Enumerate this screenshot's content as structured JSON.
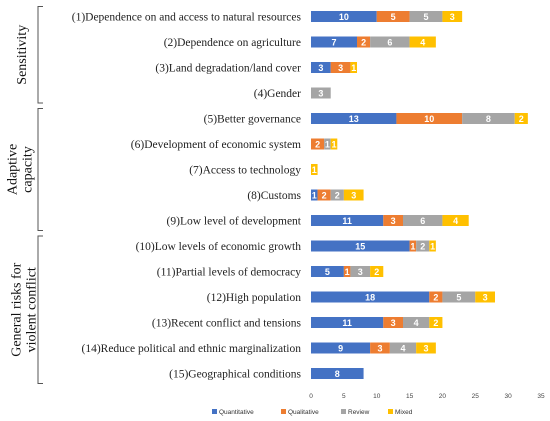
{
  "chart_data": {
    "type": "bar",
    "orientation": "horizontal",
    "stacked": true,
    "categories": [
      "(1)Dependence on and access to natural resources",
      "(2)Dependence on agriculture",
      "(3)Land degradation/land cover",
      "(4)Gender",
      "(5)Better governance",
      "(6)Development of economic system",
      "(7)Access to technology",
      "(8)Customs",
      "(9)Low level of development",
      "(10)Low levels of economic growth",
      "(11)Partial levels of democracy",
      "(12)High population",
      "(13)Recent conflict and tensions",
      "(14)Reduce political and ethnic marginalization",
      "(15)Geographical conditions"
    ],
    "series": [
      {
        "name": "Quantitative",
        "color": "#4472C4",
        "values": [
          10,
          7,
          3,
          0,
          13,
          0,
          0,
          1,
          11,
          15,
          5,
          18,
          11,
          9,
          8
        ]
      },
      {
        "name": "Qualitative",
        "color": "#ED7D31",
        "values": [
          5,
          2,
          3,
          0,
          10,
          2,
          0,
          2,
          3,
          1,
          1,
          2,
          3,
          3,
          0
        ]
      },
      {
        "name": "Review",
        "color": "#A5A5A5",
        "values": [
          5,
          6,
          0,
          3,
          8,
          1,
          0,
          2,
          6,
          2,
          3,
          5,
          4,
          4,
          0
        ]
      },
      {
        "name": "Mixed",
        "color": "#FFC000",
        "values": [
          3,
          4,
          1,
          0,
          2,
          1,
          1,
          3,
          4,
          1,
          2,
          3,
          2,
          3,
          0
        ]
      }
    ],
    "xlim": [
      0,
      35
    ],
    "xticks": [
      0,
      5,
      10,
      15,
      20,
      25,
      30,
      35
    ],
    "groups": [
      {
        "label": "Sensitivity",
        "categories": [
          0,
          3
        ]
      },
      {
        "label_lines": [
          "Adaptive",
          "capacity"
        ],
        "categories": [
          4,
          8
        ]
      },
      {
        "label_lines": [
          "General risks for",
          "violent conflict"
        ],
        "categories": [
          9,
          14
        ]
      }
    ],
    "legend_position": "bottom",
    "grid": false
  }
}
